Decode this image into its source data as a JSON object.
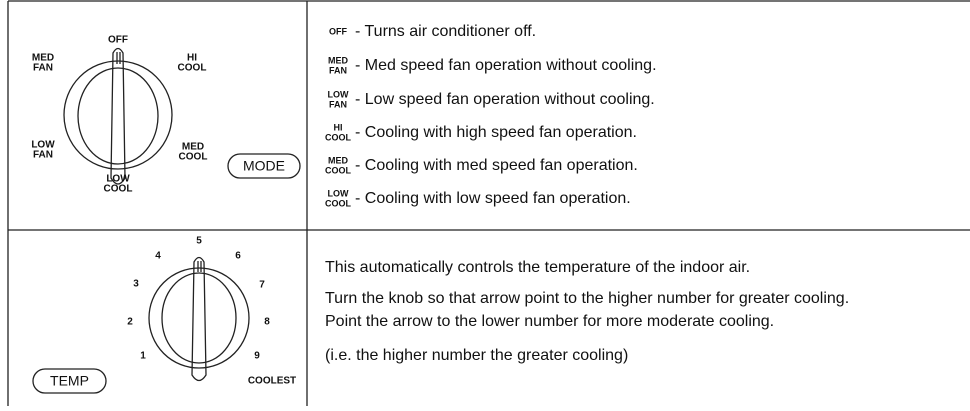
{
  "mode": {
    "dial_labels": {
      "off": [
        "OFF"
      ],
      "hi_cool": [
        "HI",
        "COOL"
      ],
      "med_fan": [
        "MED",
        "FAN"
      ],
      "low_fan": [
        "LOW",
        "FAN"
      ],
      "med_cool": [
        "MED",
        "COOL"
      ],
      "low_cool": [
        "LOW",
        "COOL"
      ]
    },
    "button": "MODE",
    "items": [
      {
        "abbr": [
          "OFF"
        ],
        "text": "- Turns air conditioner off."
      },
      {
        "abbr": [
          "MED",
          "FAN"
        ],
        "text": "- Med speed fan operation without cooling."
      },
      {
        "abbr": [
          "LOW",
          "FAN"
        ],
        "text": "- Low speed fan operation without cooling."
      },
      {
        "abbr": [
          "HI",
          "COOL"
        ],
        "text": "- Cooling with high speed fan operation."
      },
      {
        "abbr": [
          "MED",
          "COOL"
        ],
        "text": "- Cooling with med speed fan operation."
      },
      {
        "abbr": [
          "LOW",
          "COOL"
        ],
        "text": "- Cooling with low speed fan operation."
      }
    ]
  },
  "temp": {
    "dial_numbers": [
      "1",
      "2",
      "3",
      "4",
      "5",
      "6",
      "7",
      "8",
      "9"
    ],
    "coolest": "COOLEST",
    "button": "TEMP",
    "paragraphs": [
      "This automatically controls the temperature of the indoor air.",
      "Turn the knob so that arrow point to the higher number for greater cooling.",
      "Point the arrow to the lower number for more moderate cooling.",
      "(i.e. the higher number the greater cooling)"
    ]
  }
}
